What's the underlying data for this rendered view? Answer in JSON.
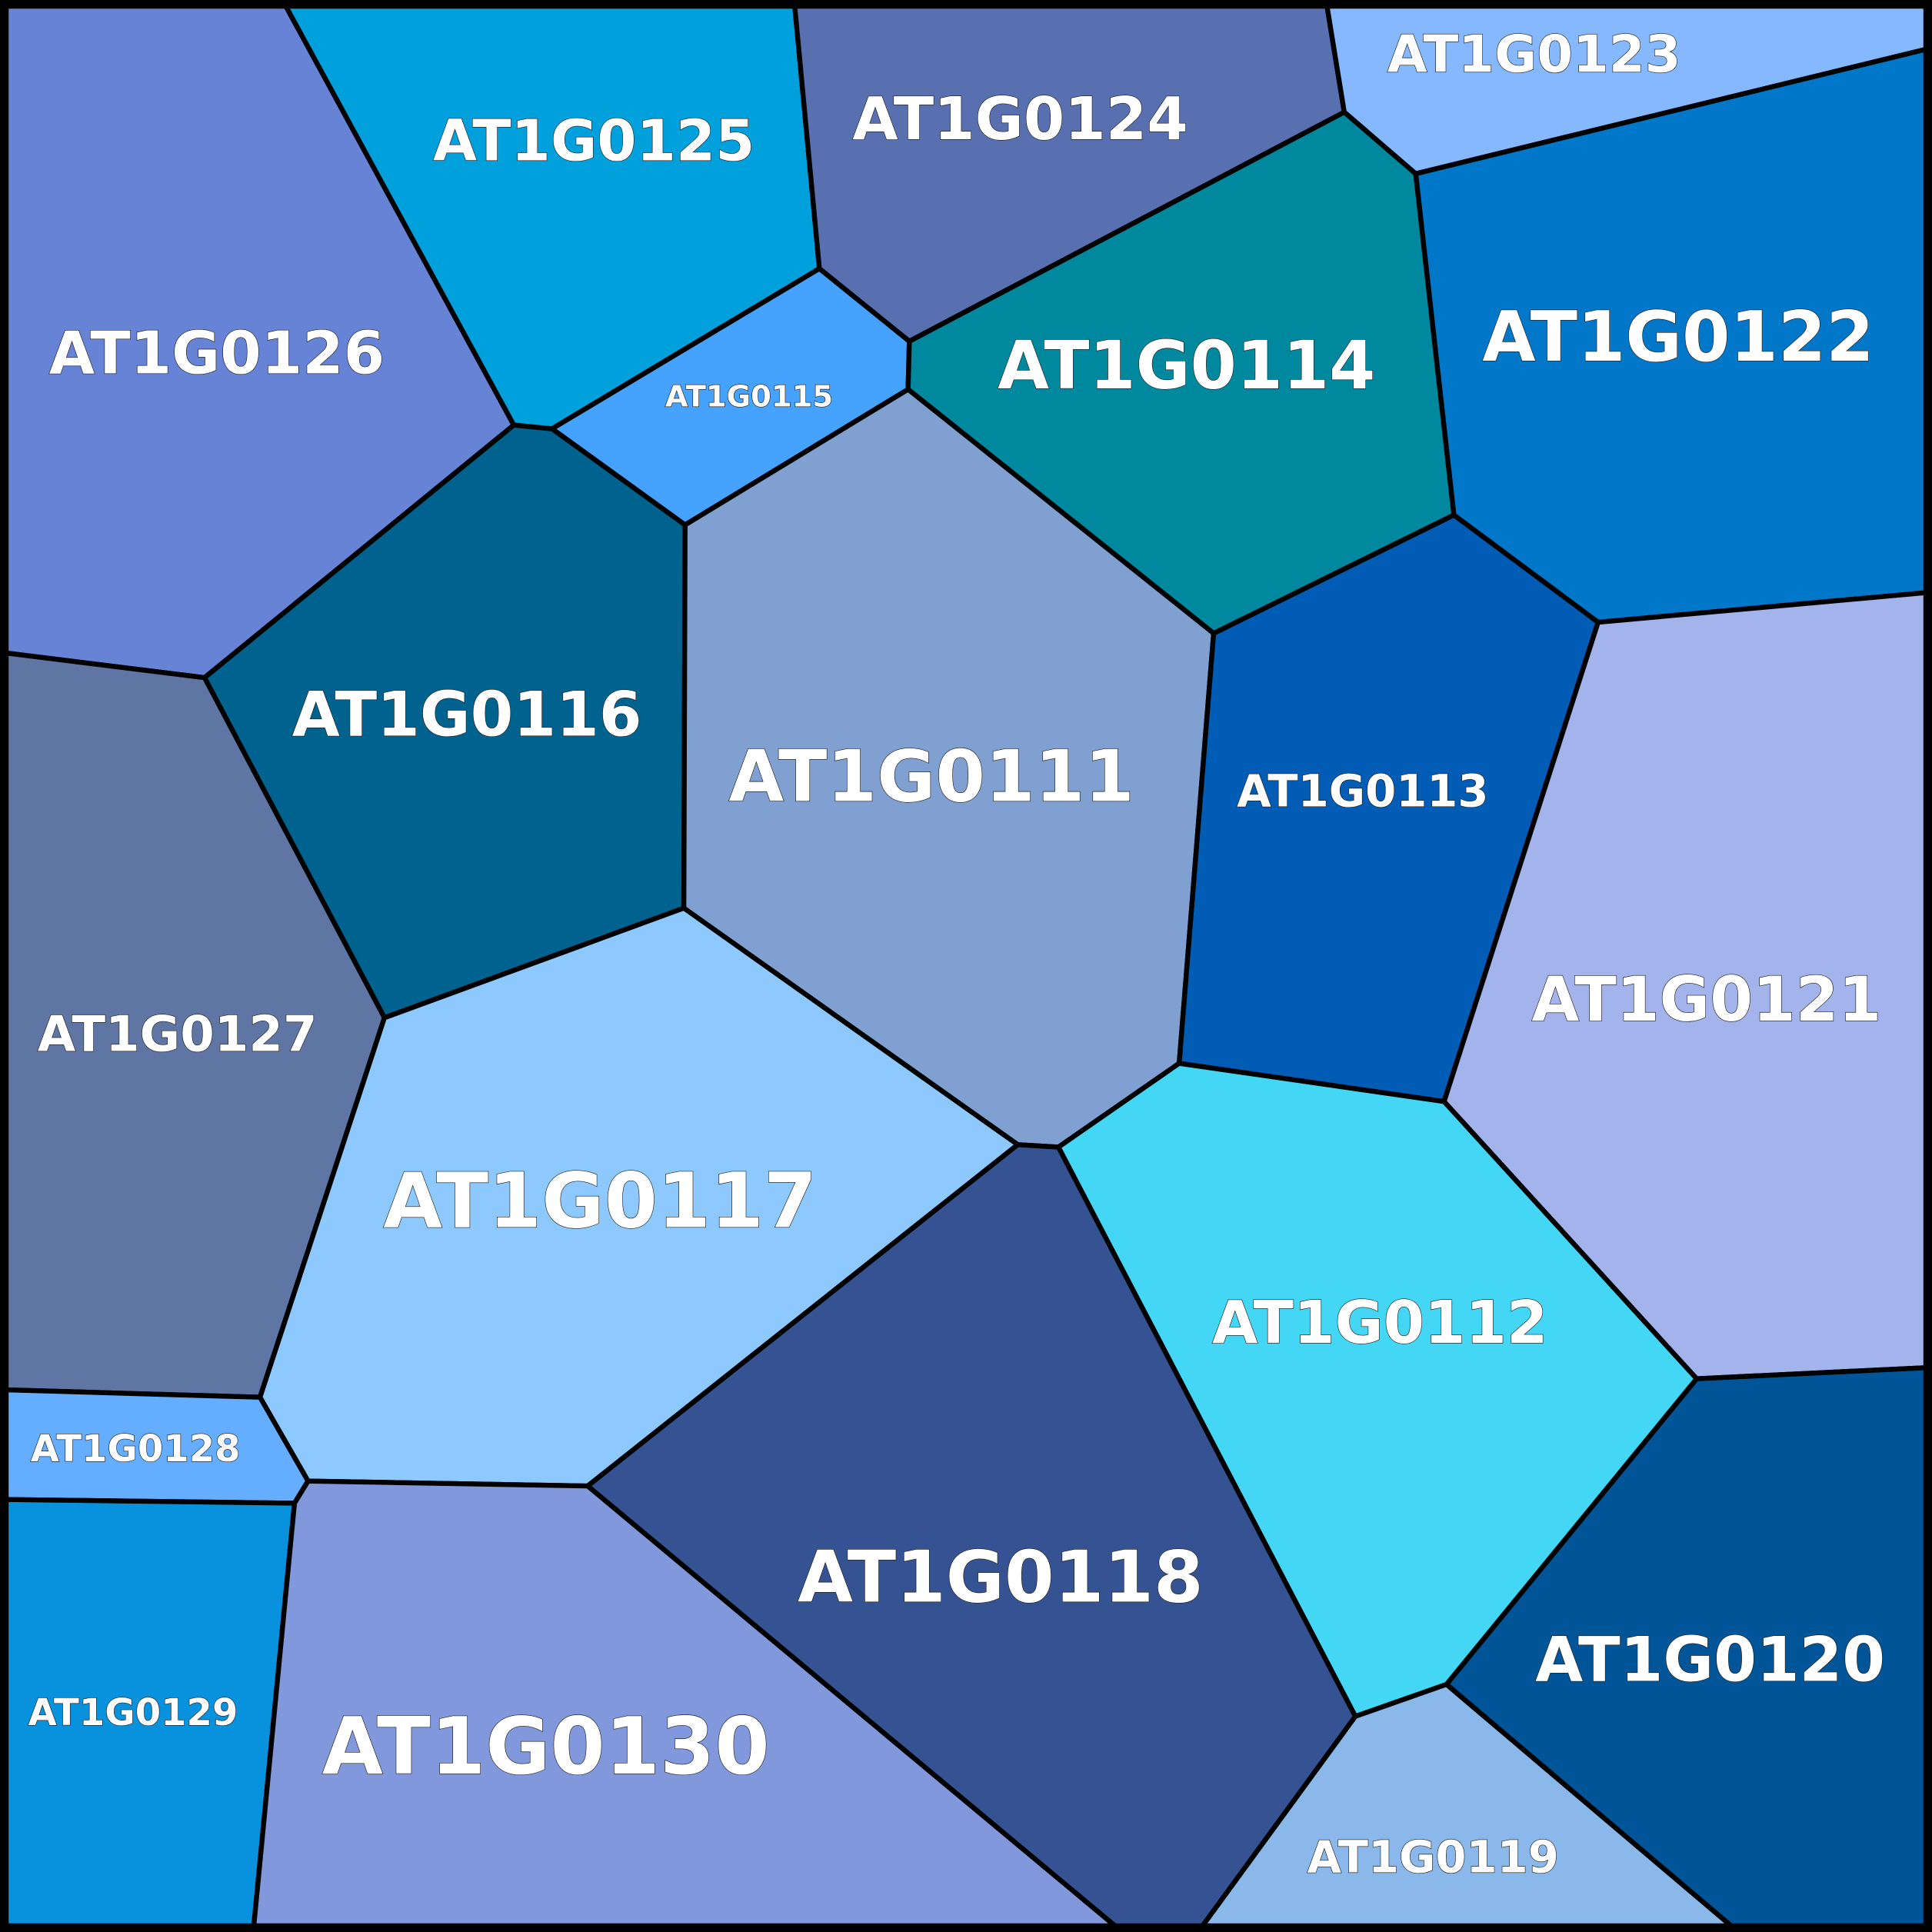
{
  "cells": {
    "c0111": {
      "label": "AT1G0111",
      "color": "#80a0d2"
    },
    "c0112": {
      "label": "AT1G0112",
      "color": "#44d6f5"
    },
    "c0113": {
      "label": "AT1G0113",
      "color": "#005cb5"
    },
    "c0114": {
      "label": "AT1G0114",
      "color": "#00889e"
    },
    "c0115": {
      "label": "AT1G0115",
      "color": "#45a2ff"
    },
    "c0116": {
      "label": "AT1G0116",
      "color": "#00628e"
    },
    "c0117": {
      "label": "AT1G0117",
      "color": "#8dc9ff"
    },
    "c0118": {
      "label": "AT1G0118",
      "color": "#355393"
    },
    "c0119": {
      "label": "AT1G0119",
      "color": "#8bb8eb"
    },
    "c0120": {
      "label": "AT1G0120",
      "color": "#005598"
    },
    "c0121": {
      "label": "AT1G0121",
      "color": "#a3b3eb"
    },
    "c0122": {
      "label": "AT1G0122",
      "color": "#0077c8"
    },
    "c0123": {
      "label": "AT1G0123",
      "color": "#85b8ff"
    },
    "c0124": {
      "label": "AT1G0124",
      "color": "#5870b0"
    },
    "c0125": {
      "label": "AT1G0125",
      "color": "#00a0dc"
    },
    "c0126": {
      "label": "AT1G0126",
      "color": "#6683d6"
    },
    "c0127": {
      "label": "AT1G0127",
      "color": "#5f75a3"
    },
    "c0128": {
      "label": "AT1G0128",
      "color": "#64adff"
    },
    "c0129": {
      "label": "AT1G0129",
      "color": "#0891dc"
    },
    "c0130": {
      "label": "AT1G0130",
      "color": "#8298dc"
    }
  }
}
